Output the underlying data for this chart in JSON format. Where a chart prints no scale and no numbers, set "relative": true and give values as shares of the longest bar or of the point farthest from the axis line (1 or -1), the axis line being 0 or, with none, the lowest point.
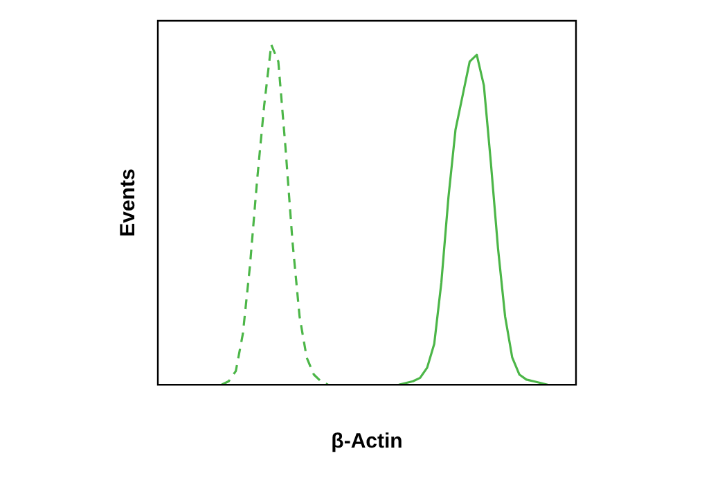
{
  "chart_data": {
    "type": "line",
    "relative": true,
    "xlabel": "β-Actin",
    "ylabel": "Events",
    "grid": false,
    "legend": false,
    "marker": "none",
    "categories": [
      null,
      null,
      null,
      null,
      null,
      null,
      null,
      null,
      null,
      null,
      null,
      null,
      null,
      null,
      null,
      null,
      null,
      null,
      null,
      null,
      null,
      null,
      null,
      null,
      null,
      null,
      null,
      null,
      null,
      null,
      null,
      null,
      null,
      null,
      null,
      null,
      null,
      null,
      null,
      null,
      null,
      null,
      null,
      null,
      null,
      null,
      null,
      null,
      null,
      null,
      null,
      null,
      null,
      null,
      null,
      null,
      null,
      null,
      null,
      null
    ],
    "series": [
      {
        "color": "#4cb648",
        "line_style": "dashed",
        "values": [
          null,
          null,
          null,
          null,
          null,
          null,
          null,
          null,
          null,
          0,
          0.01,
          0.04,
          0.15,
          0.35,
          0.6,
          0.82,
          1,
          0.95,
          0.7,
          0.42,
          0.2,
          0.08,
          0.03,
          0.01,
          0,
          null,
          null,
          null,
          null,
          null,
          null,
          null,
          null,
          null,
          null,
          null,
          null,
          null,
          null,
          null,
          null,
          null,
          null,
          null,
          null,
          null,
          null,
          null,
          null,
          null,
          null,
          null,
          null,
          null,
          null,
          null,
          null,
          null,
          null,
          null
        ]
      },
      {
        "color": "#4cb648",
        "line_style": "solid",
        "values": [
          null,
          null,
          null,
          null,
          null,
          null,
          null,
          null,
          null,
          null,
          null,
          null,
          null,
          null,
          null,
          null,
          null,
          null,
          null,
          null,
          null,
          null,
          null,
          null,
          null,
          null,
          null,
          null,
          null,
          null,
          null,
          null,
          null,
          null,
          0,
          0.005,
          0.01,
          0.02,
          0.05,
          0.12,
          0.3,
          0.55,
          0.75,
          0.85,
          0.95,
          0.97,
          0.88,
          0.65,
          0.4,
          0.2,
          0.08,
          0.03,
          0.015,
          0.01,
          0.005,
          0,
          null,
          null,
          null,
          null
        ]
      }
    ]
  }
}
